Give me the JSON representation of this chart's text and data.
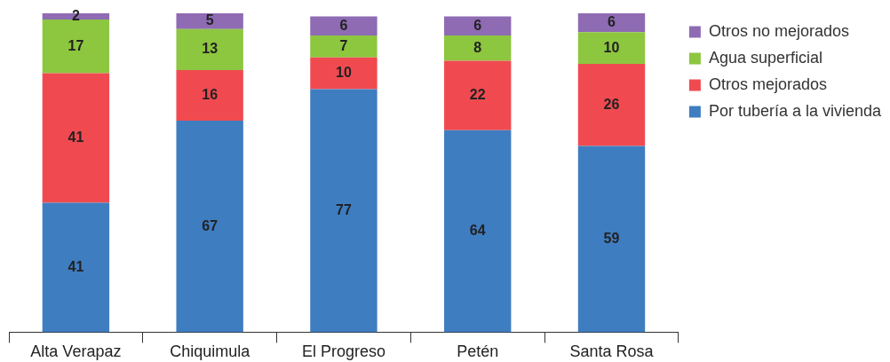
{
  "chart_data": {
    "type": "bar",
    "stacked": true,
    "data_labels": true,
    "legend": "top right",
    "grid": false,
    "categories": [
      "Alta Verapaz",
      "Chiquimula",
      "El Progreso",
      "Petén",
      "Santa Rosa"
    ],
    "series": [
      {
        "name": "Por tubería a la vivienda",
        "color": "#3f7dc1",
        "values": [
          41,
          67,
          77,
          64,
          59
        ]
      },
      {
        "name": "Otros mejorados",
        "color": "#f04a50",
        "values": [
          41,
          16,
          10,
          22,
          26
        ]
      },
      {
        "name": "Agua superficial",
        "color": "#8dc63f",
        "values": [
          17,
          13,
          7,
          8,
          10
        ]
      },
      {
        "name": "Otros no mejorados",
        "color": "#8e6bb3",
        "values": [
          2,
          5,
          6,
          6,
          6
        ]
      }
    ]
  }
}
